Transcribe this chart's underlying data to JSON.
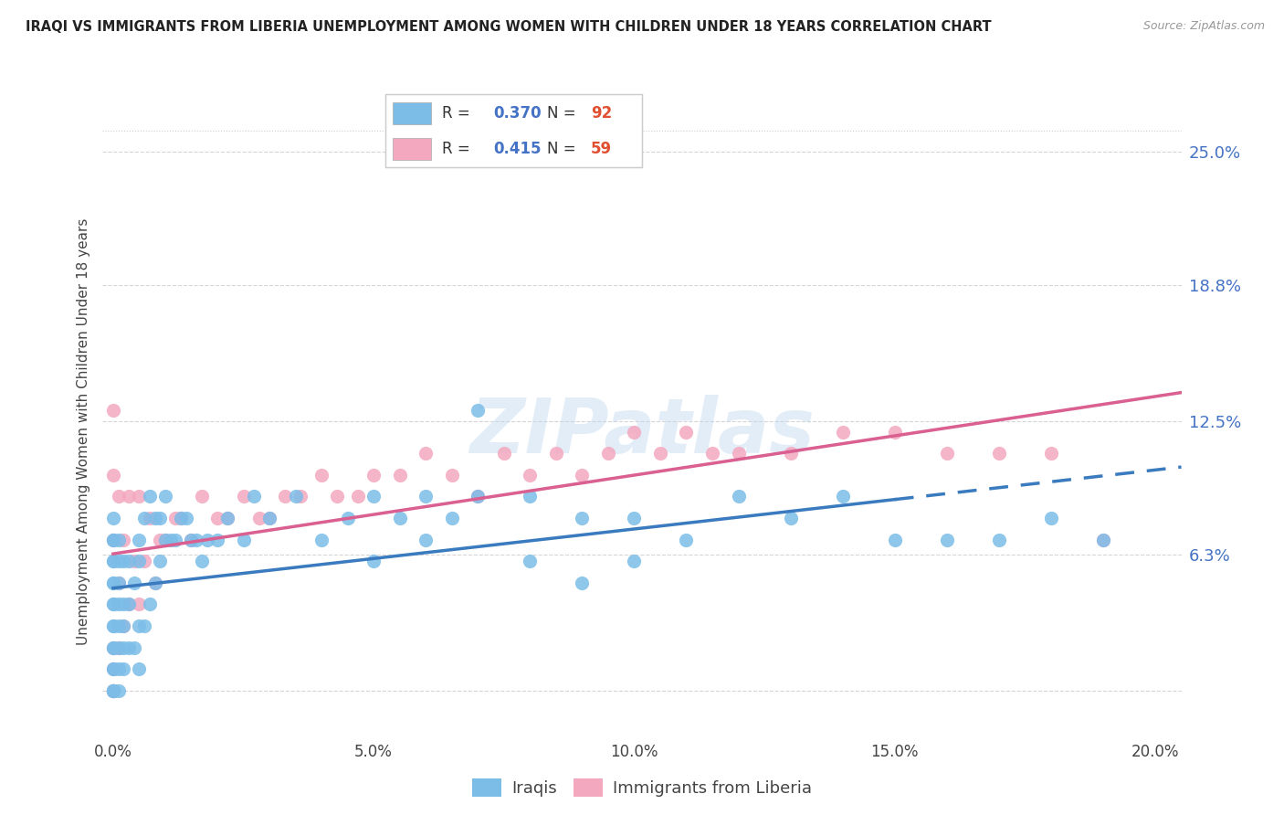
{
  "title": "IRAQI VS IMMIGRANTS FROM LIBERIA UNEMPLOYMENT AMONG WOMEN WITH CHILDREN UNDER 18 YEARS CORRELATION CHART",
  "source": "Source: ZipAtlas.com",
  "ylabel": "Unemployment Among Women with Children Under 18 years",
  "xlim": [
    -0.002,
    0.205
  ],
  "ylim": [
    -0.02,
    0.26
  ],
  "yticks": [
    0.0,
    0.063,
    0.125,
    0.188,
    0.25
  ],
  "ytick_labels": [
    "",
    "6.3%",
    "12.5%",
    "18.8%",
    "25.0%"
  ],
  "xticks": [
    0.0,
    0.05,
    0.1,
    0.15,
    0.2
  ],
  "xtick_labels": [
    "0.0%",
    "5.0%",
    "10.0%",
    "15.0%",
    "20.0%"
  ],
  "iraqis_color": "#7cbde8",
  "liberia_color": "#f4a8c0",
  "iraqis_line_color": "#3a7bbf",
  "liberia_line_color": "#d96090",
  "R_iraqis": 0.37,
  "N_iraqis": 92,
  "R_liberia": 0.415,
  "N_liberia": 59,
  "watermark": "ZIPatlas",
  "iraqis_x": [
    0.0,
    0.0,
    0.0,
    0.0,
    0.0,
    0.0,
    0.0,
    0.0,
    0.0,
    0.0,
    0.0,
    0.0,
    0.0,
    0.0,
    0.0,
    0.0,
    0.0,
    0.0,
    0.0,
    0.0,
    0.001,
    0.001,
    0.001,
    0.001,
    0.001,
    0.001,
    0.001,
    0.001,
    0.002,
    0.002,
    0.002,
    0.002,
    0.002,
    0.003,
    0.003,
    0.003,
    0.004,
    0.004,
    0.005,
    0.005,
    0.005,
    0.005,
    0.006,
    0.006,
    0.007,
    0.007,
    0.008,
    0.008,
    0.009,
    0.009,
    0.01,
    0.01,
    0.011,
    0.012,
    0.013,
    0.014,
    0.015,
    0.016,
    0.017,
    0.018,
    0.02,
    0.022,
    0.025,
    0.027,
    0.03,
    0.035,
    0.04,
    0.045,
    0.05,
    0.055,
    0.06,
    0.065,
    0.07,
    0.08,
    0.09,
    0.1,
    0.11,
    0.12,
    0.13,
    0.14,
    0.15,
    0.16,
    0.17,
    0.18,
    0.19,
    0.05,
    0.06,
    0.07,
    0.08,
    0.09,
    0.1
  ],
  "iraqis_y": [
    0.0,
    0.0,
    0.0,
    0.0,
    0.0,
    0.01,
    0.01,
    0.02,
    0.03,
    0.04,
    0.05,
    0.06,
    0.07,
    0.08,
    0.04,
    0.02,
    0.03,
    0.06,
    0.07,
    0.05,
    0.0,
    0.01,
    0.02,
    0.03,
    0.05,
    0.06,
    0.07,
    0.04,
    0.01,
    0.03,
    0.04,
    0.06,
    0.02,
    0.02,
    0.04,
    0.06,
    0.02,
    0.05,
    0.01,
    0.03,
    0.06,
    0.07,
    0.03,
    0.08,
    0.04,
    0.09,
    0.05,
    0.08,
    0.06,
    0.08,
    0.07,
    0.09,
    0.07,
    0.07,
    0.08,
    0.08,
    0.07,
    0.07,
    0.06,
    0.07,
    0.07,
    0.08,
    0.07,
    0.09,
    0.08,
    0.09,
    0.07,
    0.08,
    0.09,
    0.08,
    0.09,
    0.08,
    0.09,
    0.09,
    0.08,
    0.08,
    0.07,
    0.09,
    0.08,
    0.09,
    0.07,
    0.07,
    0.07,
    0.08,
    0.07,
    0.06,
    0.07,
    0.13,
    0.06,
    0.05,
    0.06
  ],
  "liberia_x": [
    0.0,
    0.0,
    0.0,
    0.0,
    0.0,
    0.0,
    0.0,
    0.0,
    0.001,
    0.001,
    0.001,
    0.002,
    0.002,
    0.003,
    0.003,
    0.004,
    0.005,
    0.005,
    0.006,
    0.007,
    0.008,
    0.009,
    0.01,
    0.012,
    0.013,
    0.015,
    0.017,
    0.02,
    0.022,
    0.025,
    0.028,
    0.03,
    0.033,
    0.036,
    0.04,
    0.043,
    0.047,
    0.05,
    0.055,
    0.06,
    0.065,
    0.07,
    0.075,
    0.08,
    0.085,
    0.09,
    0.095,
    0.1,
    0.105,
    0.11,
    0.115,
    0.12,
    0.13,
    0.14,
    0.15,
    0.16,
    0.17,
    0.18,
    0.19
  ],
  "liberia_y": [
    0.0,
    0.0,
    0.0,
    0.01,
    0.02,
    0.07,
    0.1,
    0.13,
    0.02,
    0.05,
    0.09,
    0.03,
    0.07,
    0.04,
    0.09,
    0.06,
    0.04,
    0.09,
    0.06,
    0.08,
    0.05,
    0.07,
    0.07,
    0.08,
    0.08,
    0.07,
    0.09,
    0.08,
    0.08,
    0.09,
    0.08,
    0.08,
    0.09,
    0.09,
    0.1,
    0.09,
    0.09,
    0.1,
    0.1,
    0.11,
    0.1,
    0.09,
    0.11,
    0.1,
    0.11,
    0.1,
    0.11,
    0.12,
    0.11,
    0.12,
    0.11,
    0.11,
    0.11,
    0.12,
    0.12,
    0.11,
    0.11,
    0.11,
    0.07
  ]
}
